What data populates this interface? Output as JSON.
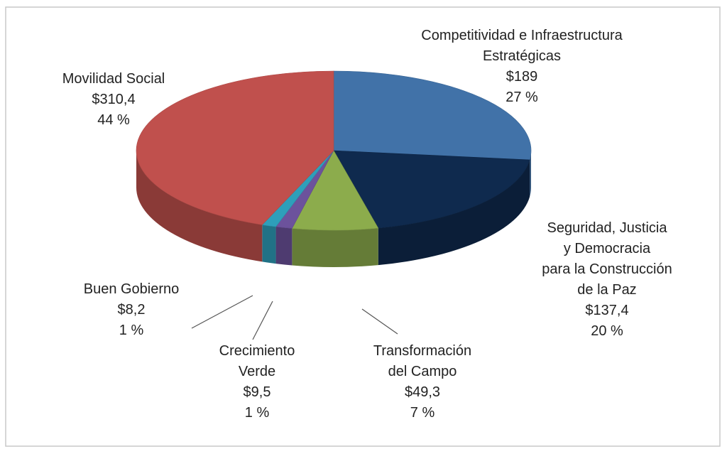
{
  "chart_data": {
    "type": "pie3d",
    "categories": [
      "Competitividad e Infraestructura\nEstratégicas",
      "Seguridad, Justicia\ny Democracia\npara la Construcción\nde la Paz",
      "Transformación\ndel Campo",
      "Crecimiento\nVerde",
      "Buen Gobierno",
      "Movilidad Social"
    ],
    "values": [
      189,
      137.4,
      49.3,
      9.5,
      8.2,
      310.4
    ],
    "value_labels": [
      "$189",
      "$137,4",
      "$49,3",
      "$9,5",
      "$8,2",
      "$310,4"
    ],
    "percentages": [
      27,
      20,
      7,
      1,
      1,
      44
    ],
    "percent_labels": [
      "27 %",
      "20 %",
      "7 %",
      "1 %",
      "1 %",
      "44 %"
    ],
    "colors": [
      "#4172a8",
      "#0f2a4e",
      "#8cac4c",
      "#6c529c",
      "#2e9fba",
      "#c0504d"
    ]
  }
}
